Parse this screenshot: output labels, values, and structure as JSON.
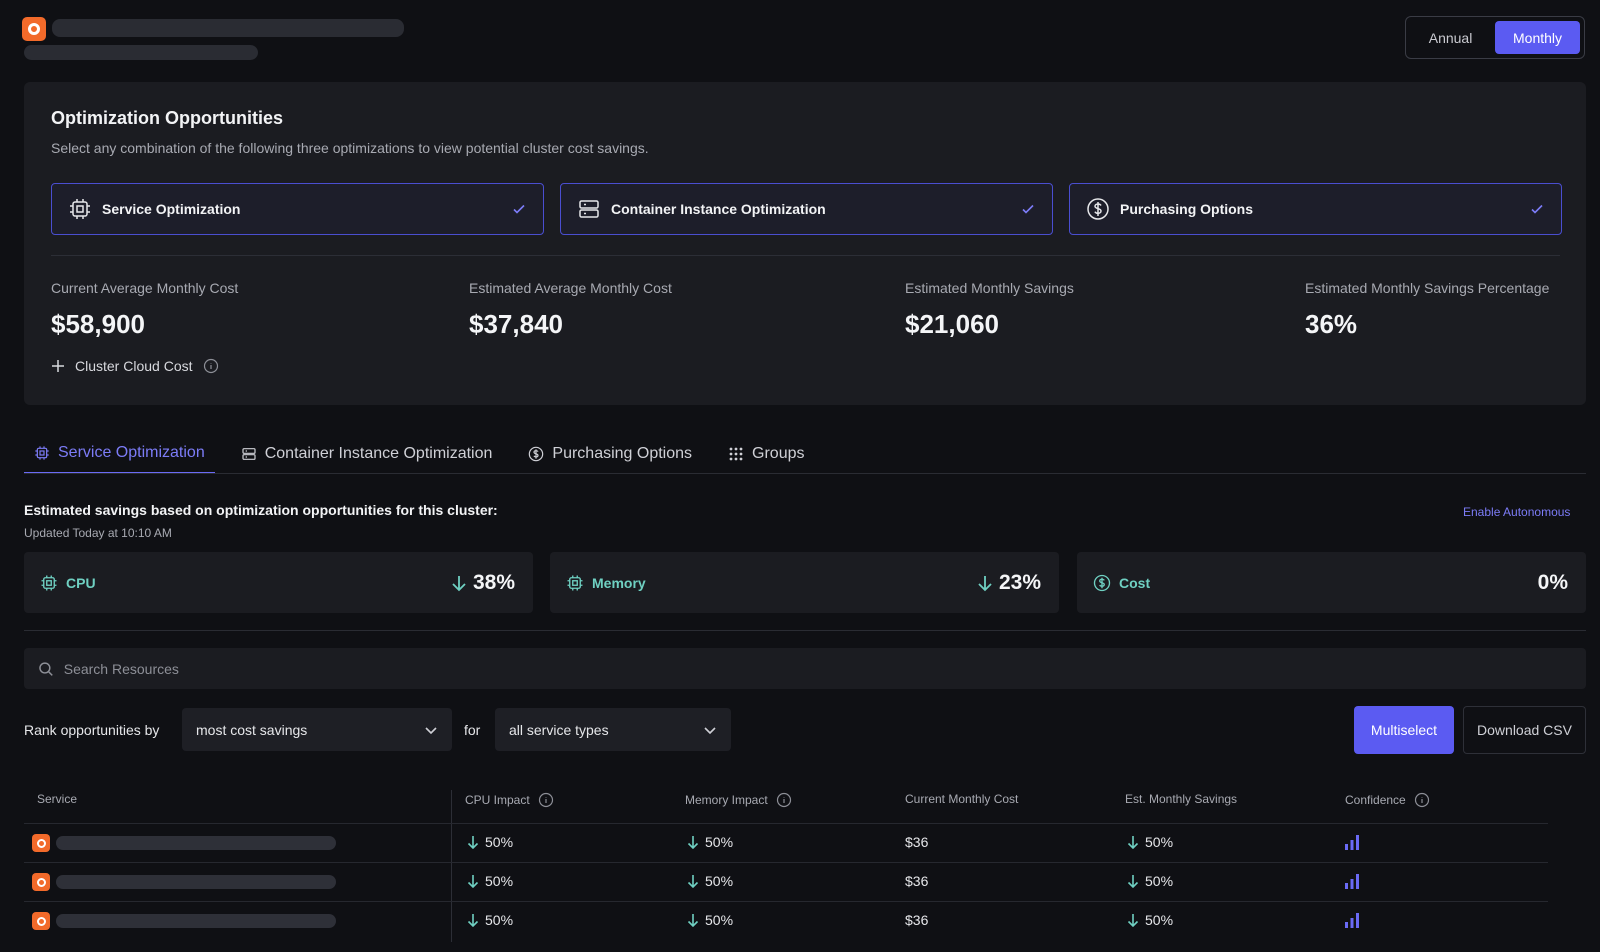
{
  "header": {
    "period_toggle": {
      "annual": "Annual",
      "monthly": "Monthly",
      "selected": "Monthly"
    }
  },
  "opportunities": {
    "title": "Optimization Opportunities",
    "description": "Select any combination of the following three optimizations to view potential cluster cost savings.",
    "options": [
      {
        "label": "Service Optimization",
        "icon": "cpu-chip-icon",
        "checked": true
      },
      {
        "label": "Container Instance Optimization",
        "icon": "server-icon",
        "checked": true
      },
      {
        "label": "Purchasing Options",
        "icon": "dollar-circle-icon",
        "checked": true
      }
    ],
    "stats": [
      {
        "label": "Current Average Monthly Cost",
        "value": "$58,900"
      },
      {
        "label": "Estimated Average Monthly Cost",
        "value": "$37,840"
      },
      {
        "label": "Estimated Monthly Savings",
        "value": "$21,060"
      },
      {
        "label": "Estimated Monthly Savings Percentage",
        "value": "36%"
      }
    ],
    "cluster_cost_label": "Cluster Cloud Cost"
  },
  "tabs": [
    {
      "label": "Service Optimization",
      "icon": "cpu-chip-icon",
      "active": true
    },
    {
      "label": "Container Instance Optimization",
      "icon": "server-icon",
      "active": false
    },
    {
      "label": "Purchasing Options",
      "icon": "dollar-circle-icon",
      "active": false
    },
    {
      "label": "Groups",
      "icon": "grid-icon",
      "active": false
    }
  ],
  "savings": {
    "title": "Estimated savings based on optimization opportunities for this cluster:",
    "updated": "Updated Today at 10:10 AM",
    "enable_link": "Enable Autonomous",
    "metrics": [
      {
        "label": "CPU",
        "value": "38%",
        "down": true
      },
      {
        "label": "Memory",
        "value": "23%",
        "down": true
      },
      {
        "label": "Cost",
        "value": "0%",
        "down": false
      }
    ]
  },
  "search": {
    "placeholder": "Search Resources"
  },
  "filters": {
    "rank_label": "Rank opportunities by",
    "rank_value": "most cost savings",
    "for_label": "for",
    "type_value": "all service types",
    "multiselect": "Multiselect",
    "download": "Download CSV"
  },
  "table": {
    "columns": [
      "Service",
      "CPU Impact",
      "Memory Impact",
      "Current Monthly Cost",
      "Est. Monthly Savings",
      "Confidence"
    ],
    "rows": [
      {
        "cpu": "50%",
        "memory": "50%",
        "cost": "$36",
        "savings": "50%"
      },
      {
        "cpu": "50%",
        "memory": "50%",
        "cost": "$36",
        "savings": "50%"
      },
      {
        "cpu": "50%",
        "memory": "50%",
        "cost": "$36",
        "savings": "50%"
      }
    ]
  },
  "colors": {
    "accent": "#5b5bf2",
    "teal": "#6fd0c2",
    "brand": "#f26a2a"
  }
}
